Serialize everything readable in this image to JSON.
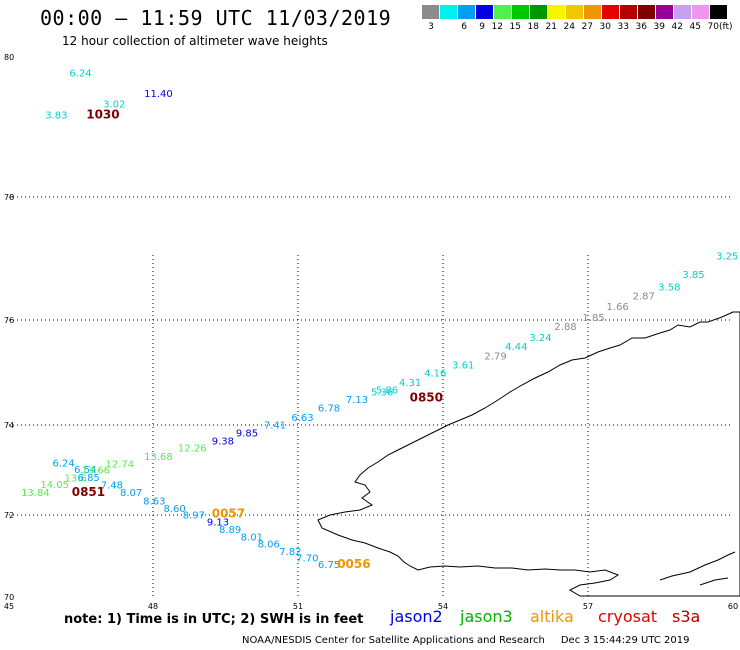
{
  "header": {
    "title": "00:00 – 11:59 UTC 11/03/2019",
    "subtitle": "12 hour collection of altimeter wave heights"
  },
  "color_scale": {
    "items": [
      {
        "label": "3",
        "color": "#8c8c8c"
      },
      {
        "label": "6",
        "color": "#00f0f0"
      },
      {
        "label": "9",
        "color": "#00a0f0"
      },
      {
        "label": "12",
        "color": "#0000e6"
      },
      {
        "label": "15",
        "color": "#50f050"
      },
      {
        "label": "18",
        "color": "#00c800"
      },
      {
        "label": "21",
        "color": "#009600"
      },
      {
        "label": "24",
        "color": "#f5f500"
      },
      {
        "label": "27",
        "color": "#f0c800"
      },
      {
        "label": "30",
        "color": "#f09600"
      },
      {
        "label": "33",
        "color": "#e60000"
      },
      {
        "label": "36",
        "color": "#b40000"
      },
      {
        "label": "39",
        "color": "#800000"
      },
      {
        "label": "42",
        "color": "#960096"
      },
      {
        "label": "45",
        "color": "#c8a0f0"
      },
      {
        "label": "70",
        "color": "#f096f0"
      },
      {
        "label": "",
        "color": "#000000"
      }
    ],
    "unit": "(ft)"
  },
  "map": {
    "lat_labels": [
      "80",
      "78",
      "76",
      "74",
      "72",
      "70"
    ],
    "lon_labels": [
      "45",
      "48",
      "51",
      "54",
      "57",
      "60"
    ],
    "obs": [
      {
        "v": "6.24",
        "lon": 46.25,
        "lat": 79.72,
        "c": "#00d2d2"
      },
      {
        "v": "11.40",
        "lon": 47.8,
        "lat": 79.43,
        "c": "#0000e6"
      },
      {
        "v": "3.02",
        "lon": 46.95,
        "lat": 79.28,
        "c": "#00d2d2"
      },
      {
        "v": "3.83",
        "lon": 45.75,
        "lat": 79.12,
        "c": "#00d2d2"
      },
      {
        "v": "3.25",
        "lon": 59.65,
        "lat": 76.98,
        "c": "#00d2d2"
      },
      {
        "v": "3.85",
        "lon": 58.95,
        "lat": 76.68,
        "c": "#00d2d2"
      },
      {
        "v": "3.58",
        "lon": 58.45,
        "lat": 76.48,
        "c": "#00d2d2"
      },
      {
        "v": "2.87",
        "lon": 57.92,
        "lat": 76.33,
        "c": "#8c8c8c"
      },
      {
        "v": "1.66",
        "lon": 57.38,
        "lat": 76.16,
        "c": "#8c8c8c"
      },
      {
        "v": "1.85",
        "lon": 56.88,
        "lat": 75.98,
        "c": "#8c8c8c"
      },
      {
        "v": "2.88",
        "lon": 56.3,
        "lat": 75.81,
        "c": "#8c8c8c"
      },
      {
        "v": "3.24",
        "lon": 55.78,
        "lat": 75.6,
        "c": "#00d2d2"
      },
      {
        "v": "4.44",
        "lon": 55.28,
        "lat": 75.43,
        "c": "#00d2d2"
      },
      {
        "v": "2.79",
        "lon": 54.85,
        "lat": 75.25,
        "c": "#8c8c8c"
      },
      {
        "v": "3.61",
        "lon": 54.18,
        "lat": 75.08,
        "c": "#00d2d2"
      },
      {
        "v": "4.16",
        "lon": 53.6,
        "lat": 74.92,
        "c": "#00d2d2"
      },
      {
        "v": "4.31",
        "lon": 53.08,
        "lat": 74.74,
        "c": "#00d2d2"
      },
      {
        "v": "5.86",
        "lon": 52.6,
        "lat": 74.6,
        "c": "#00d2d2"
      },
      {
        "v": "5.36",
        "lon": 52.5,
        "lat": 74.56,
        "c": "#00d2d2"
      },
      {
        "v": "7.13",
        "lon": 51.98,
        "lat": 74.42,
        "c": "#00a0f0"
      },
      {
        "v": "6.78",
        "lon": 51.4,
        "lat": 74.26,
        "c": "#00a0f0"
      },
      {
        "v": "6.63",
        "lon": 50.85,
        "lat": 74.08,
        "c": "#00a0f0"
      },
      {
        "v": "7.41",
        "lon": 50.28,
        "lat": 73.92,
        "c": "#00a0f0"
      },
      {
        "v": "9.85",
        "lon": 49.7,
        "lat": 73.74,
        "c": "#0000e6"
      },
      {
        "v": "9.38",
        "lon": 49.2,
        "lat": 73.57,
        "c": "#0000e6"
      },
      {
        "v": "12.26",
        "lon": 48.5,
        "lat": 73.41,
        "c": "#50f050"
      },
      {
        "v": "13.68",
        "lon": 47.8,
        "lat": 73.22,
        "c": "#50f050"
      },
      {
        "v": "12.74",
        "lon": 47.0,
        "lat": 73.06,
        "c": "#50f050"
      },
      {
        "v": "6.24",
        "lon": 45.9,
        "lat": 73.08,
        "c": "#00a0f0"
      },
      {
        "v": "6.54",
        "lon": 46.35,
        "lat": 72.93,
        "c": "#00a0f0"
      },
      {
        "v": "13.66",
        "lon": 46.5,
        "lat": 72.92,
        "c": "#50f050"
      },
      {
        "v": "13.6",
        "lon": 46.15,
        "lat": 72.75,
        "c": "#50f050"
      },
      {
        "v": "6.85",
        "lon": 46.42,
        "lat": 72.76,
        "c": "#00a0f0"
      },
      {
        "v": "14.05",
        "lon": 45.65,
        "lat": 72.6,
        "c": "#50f050"
      },
      {
        "v": "7.48",
        "lon": 46.9,
        "lat": 72.59,
        "c": "#00a0f0"
      },
      {
        "v": "13.84",
        "lon": 45.25,
        "lat": 72.42,
        "c": "#50f050"
      },
      {
        "v": "8.07",
        "lon": 47.3,
        "lat": 72.42,
        "c": "#00a0f0"
      },
      {
        "v": "8.63",
        "lon": 47.78,
        "lat": 72.23,
        "c": "#00a0f0"
      },
      {
        "v": "8.60",
        "lon": 48.2,
        "lat": 72.07,
        "c": "#00a0f0"
      },
      {
        "v": "8.97",
        "lon": 48.6,
        "lat": 71.91,
        "c": "#00a0f0"
      },
      {
        "v": "9.13",
        "lon": 49.1,
        "lat": 71.74,
        "c": "#0000e6"
      },
      {
        "v": "8.89",
        "lon": 49.35,
        "lat": 71.56,
        "c": "#00a0f0"
      },
      {
        "v": "8.01",
        "lon": 49.8,
        "lat": 71.38,
        "c": "#00a0f0"
      },
      {
        "v": "8.06",
        "lon": 50.15,
        "lat": 71.21,
        "c": "#00a0f0"
      },
      {
        "v": "7.82",
        "lon": 50.6,
        "lat": 71.03,
        "c": "#00a0f0"
      },
      {
        "v": "7.70",
        "lon": 50.95,
        "lat": 70.87,
        "c": "#00a0f0"
      },
      {
        "v": "6.75",
        "lon": 51.4,
        "lat": 70.71,
        "c": "#00a0f0"
      }
    ],
    "times": [
      {
        "v": "1030",
        "lon": 46.6,
        "lat": 79.12,
        "c": "#800000"
      },
      {
        "v": "0850",
        "lon": 53.3,
        "lat": 74.45,
        "c": "#800000"
      },
      {
        "v": "0851",
        "lon": 46.3,
        "lat": 72.42,
        "c": "#800000"
      },
      {
        "v": "0057",
        "lon": 49.2,
        "lat": 71.94,
        "c": "#f09600"
      },
      {
        "v": "0056",
        "lon": 51.8,
        "lat": 70.71,
        "c": "#f09600"
      }
    ]
  },
  "note": "note:  1)  Time is in UTC;  2)  SWH is in feet",
  "legend": [
    {
      "label": "jason2",
      "color": "#0000e6"
    },
    {
      "label": "jason3",
      "color": "#00b400"
    },
    {
      "label": "altika",
      "color": "#f09600"
    },
    {
      "label": "cryosat",
      "color": "#e60000"
    },
    {
      "label": "s3a",
      "color": "#b40000"
    }
  ],
  "footer": {
    "credit": "NOAA/NESDIS Center for Satellite Applications and Research",
    "timestamp": "Dec  3 15:44:29 UTC 2019"
  }
}
